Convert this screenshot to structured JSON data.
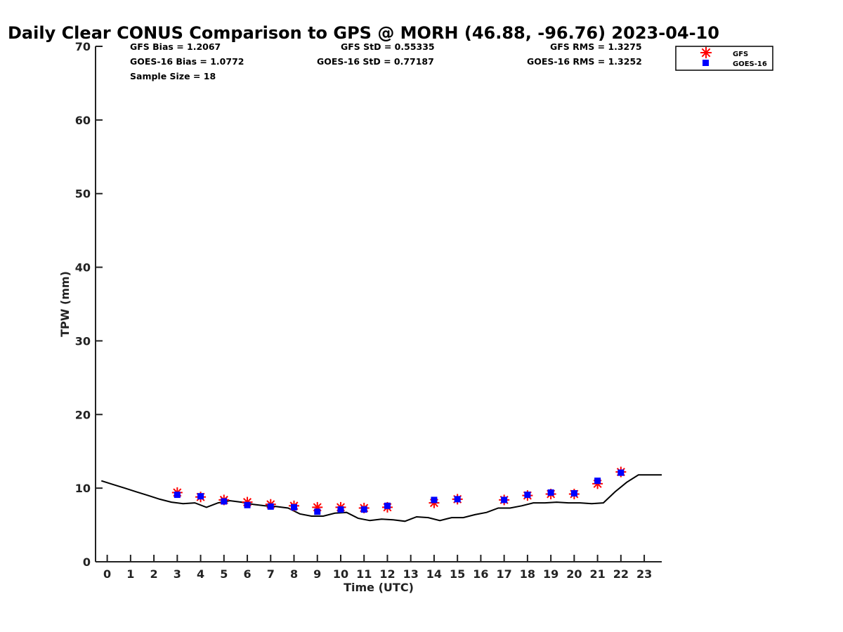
{
  "chart_data": {
    "type": "scatter",
    "title": "Daily Clear CONUS Comparison to GPS @ MORH (46.88, -96.76) 2023-04-10",
    "xlabel": "Time (UTC)",
    "ylabel": "TPW (mm)",
    "xlim": [
      -0.5,
      23.75
    ],
    "ylim": [
      0,
      70
    ],
    "xticks": [
      0,
      1,
      2,
      3,
      4,
      5,
      6,
      7,
      8,
      9,
      10,
      11,
      12,
      13,
      14,
      15,
      16,
      17,
      18,
      19,
      20,
      21,
      22,
      23
    ],
    "yticks": [
      0,
      10,
      20,
      30,
      40,
      50,
      60,
      70
    ],
    "grid": false,
    "legend_position": "top-right",
    "stats": {
      "gfs_bias": "GFS Bias = 1.2067",
      "goes_bias": "GOES-16 Bias = 1.0772",
      "sample_size": "Sample Size = 18",
      "gfs_std": "GFS StD = 0.55335",
      "goes_std": "GOES-16 StD = 0.77187",
      "gfs_rms": "GFS RMS = 1.3275",
      "goes_rms": "GOES-16 RMS = 1.3252"
    },
    "series": [
      {
        "name": "GFS",
        "marker": "asterisk",
        "color": "#ff0000",
        "x": [
          3,
          4,
          5,
          6,
          7,
          8,
          9,
          10,
          11,
          12,
          14,
          15,
          17,
          18,
          19,
          20,
          21,
          22
        ],
        "y": [
          9.4,
          8.8,
          8.4,
          8.1,
          7.8,
          7.6,
          7.4,
          7.4,
          7.3,
          7.4,
          8.0,
          8.5,
          8.4,
          9.0,
          9.2,
          9.2,
          10.6,
          12.2
        ]
      },
      {
        "name": "GOES-16",
        "marker": "square",
        "color": "#0000ff",
        "x": [
          3,
          4,
          5,
          6,
          7,
          8,
          9,
          10,
          11,
          12,
          14,
          15,
          17,
          18,
          19,
          20,
          21,
          22
        ],
        "y": [
          9.1,
          8.9,
          8.2,
          7.7,
          7.5,
          7.4,
          6.8,
          7.1,
          7.1,
          7.6,
          8.4,
          8.5,
          8.4,
          9.1,
          9.4,
          9.3,
          11.0,
          12.1
        ]
      },
      {
        "marker": "line",
        "color": "#000000",
        "x": [
          -0.25,
          0.25,
          0.75,
          1.25,
          1.75,
          2.25,
          2.75,
          3.25,
          3.75,
          4.25,
          4.75,
          5.25,
          5.75,
          6.25,
          6.75,
          7.25,
          7.75,
          8.25,
          8.75,
          9.25,
          9.75,
          10.25,
          10.75,
          11.25,
          11.75,
          12.25,
          12.75,
          13.25,
          13.75,
          14.25,
          14.75,
          15.25,
          15.75,
          16.25,
          16.75,
          17.25,
          17.75,
          18.25,
          18.75,
          19.25,
          19.75,
          20.25,
          20.75,
          21.25,
          21.75,
          22.25,
          22.75,
          23.25,
          23.75
        ],
        "y": [
          11.0,
          10.5,
          10.0,
          9.5,
          9.0,
          8.5,
          8.1,
          7.9,
          8.0,
          7.4,
          8.0,
          8.3,
          8.1,
          7.8,
          7.6,
          7.5,
          7.3,
          6.5,
          6.2,
          6.2,
          6.6,
          6.7,
          5.9,
          5.6,
          5.8,
          5.7,
          5.5,
          6.1,
          6.0,
          5.6,
          6.0,
          6.0,
          6.4,
          6.7,
          7.3,
          7.3,
          7.6,
          8.0,
          8.0,
          8.1,
          8.0,
          8.0,
          7.9,
          8.0,
          9.5,
          10.8,
          11.8,
          11.8,
          11.8
        ]
      }
    ]
  }
}
